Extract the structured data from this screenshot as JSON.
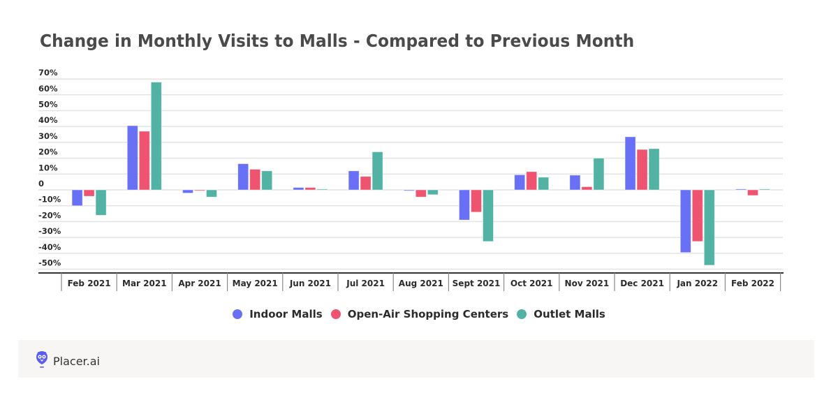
{
  "header": {
    "title": "Change in Monthly Visits to Malls - Compared to Previous Month"
  },
  "chart_data": {
    "type": "bar",
    "title": "Change in Monthly Visits to Malls - Compared to Previous Month",
    "xlabel": "",
    "ylabel": "",
    "ylim": [
      -52.5,
      70
    ],
    "yticks": [
      70,
      60,
      50,
      40,
      30,
      20,
      10,
      0,
      -10,
      -20,
      -30,
      -40,
      -50
    ],
    "ytick_labels": [
      "70%",
      "60%",
      "50%",
      "40%",
      "30%",
      "20%",
      "10%",
      "0",
      "-10%",
      "-20%",
      "-30%",
      "-40%",
      "-50%"
    ],
    "grid": true,
    "legend_position": "bottom-center",
    "categories": [
      "Feb 2021",
      "Mar 2021",
      "Apr 2021",
      "May 2021",
      "Jun 2021",
      "Jul 2021",
      "Aug 2021",
      "Sept 2021",
      "Oct 2021",
      "Nov 2021",
      "Dec 2021",
      "Jan 2022",
      "Feb 2022"
    ],
    "series": [
      {
        "name": "Indoor Malls",
        "color": "#6870f6",
        "values": [
          -10,
          40.5,
          -2,
          16.5,
          1.5,
          12,
          -0.3,
          -19,
          9.5,
          9.3,
          33.5,
          -39.5,
          0.3
        ]
      },
      {
        "name": "Open-Air Shopping Centers",
        "color": "#ee546f",
        "values": [
          -4,
          37,
          -0.5,
          13,
          1.5,
          8.5,
          -4.5,
          -14,
          11.5,
          2,
          25.5,
          -32.5,
          -3.5
        ]
      },
      {
        "name": "Outlet Malls",
        "color": "#52b2a4",
        "values": [
          -16,
          68,
          -4.5,
          12,
          0.5,
          24,
          -3,
          -32.5,
          8,
          20,
          26,
          -47.5,
          0.3
        ]
      }
    ]
  },
  "legend": [
    {
      "label": "Indoor Malls",
      "color": "#6870f6"
    },
    {
      "label": "Open-Air Shopping Centers",
      "color": "#ee546f"
    },
    {
      "label": "Outlet Malls",
      "color": "#52b2a4"
    }
  ],
  "footer": {
    "brand": "Placer.ai",
    "logo_icon": "owl-pin-icon",
    "logo_color": "#5b5cf0"
  }
}
